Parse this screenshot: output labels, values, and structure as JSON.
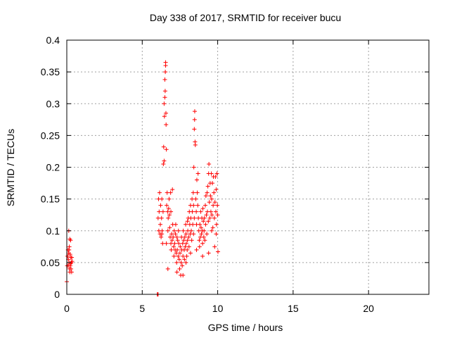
{
  "chart_data": {
    "type": "scatter",
    "title": "Day 338 of 2017, SRMTID for receiver bucu",
    "xlabel": "GPS time / hours",
    "ylabel": "SRMTID / TECUs",
    "xlim": [
      0,
      24
    ],
    "ylim": [
      0,
      0.4
    ],
    "xticks": [
      0,
      5,
      10,
      15,
      20
    ],
    "yticks": [
      0,
      0.05,
      0.1,
      0.15,
      0.2,
      0.25,
      0.3,
      0.35,
      0.4
    ],
    "ytick_labels": [
      "0",
      "0.05",
      "0.1",
      "0.15",
      "0.2",
      "0.25",
      "0.3",
      "0.35",
      "0.4"
    ],
    "grid": true,
    "marker": "+",
    "marker_color": "#ff0000",
    "series": [
      {
        "points": [
          [
            0.0,
            0.02
          ],
          [
            0.03,
            0.045
          ],
          [
            0.05,
            0.06
          ],
          [
            0.08,
            0.07
          ],
          [
            0.1,
            0.055
          ],
          [
            0.12,
            0.065
          ],
          [
            0.13,
            0.1
          ],
          [
            0.15,
            0.05
          ],
          [
            0.17,
            0.075
          ],
          [
            0.18,
            0.04
          ],
          [
            0.2,
            0.087
          ],
          [
            0.22,
            0.063
          ],
          [
            0.23,
            0.045
          ],
          [
            0.25,
            0.085
          ],
          [
            0.27,
            0.058
          ],
          [
            0.28,
            0.04
          ],
          [
            0.3,
            0.05
          ],
          [
            0.32,
            0.035
          ],
          [
            0.33,
            0.058
          ],
          [
            0.35,
            0.052
          ],
          [
            0.1,
            0.045
          ],
          [
            0.2,
            0.035
          ],
          [
            0.15,
            0.07
          ],
          [
            0.25,
            0.048
          ],
          [
            6.0,
            0.0
          ],
          [
            6.03,
            0.0
          ],
          [
            6.05,
            0.0
          ],
          [
            6.05,
            0.12
          ],
          [
            6.08,
            0.15
          ],
          [
            6.1,
            0.1
          ],
          [
            6.12,
            0.13
          ],
          [
            6.15,
            0.16
          ],
          [
            6.18,
            0.095
          ],
          [
            6.2,
            0.11
          ],
          [
            6.22,
            0.14
          ],
          [
            6.25,
            0.09
          ],
          [
            6.28,
            0.12
          ],
          [
            6.3,
            0.15
          ],
          [
            6.32,
            0.1
          ],
          [
            6.35,
            0.08
          ],
          [
            6.38,
            0.13
          ],
          [
            6.4,
            0.205
          ],
          [
            6.42,
            0.232
          ],
          [
            6.45,
            0.21
          ],
          [
            6.45,
            0.3
          ],
          [
            6.47,
            0.28
          ],
          [
            6.5,
            0.31
          ],
          [
            6.5,
            0.338
          ],
          [
            6.52,
            0.32
          ],
          [
            6.53,
            0.35
          ],
          [
            6.55,
            0.36
          ],
          [
            6.55,
            0.365
          ],
          [
            6.57,
            0.285
          ],
          [
            6.58,
            0.267
          ],
          [
            6.6,
            0.228
          ],
          [
            6.62,
            0.14
          ],
          [
            6.65,
            0.16
          ],
          [
            6.68,
            0.13
          ],
          [
            6.7,
            0.1
          ],
          [
            6.72,
            0.12
          ],
          [
            6.75,
            0.135
          ],
          [
            6.78,
            0.15
          ],
          [
            6.8,
            0.125
          ],
          [
            6.82,
            0.105
          ],
          [
            6.85,
            0.09
          ],
          [
            6.88,
            0.16
          ],
          [
            6.9,
            0.08
          ],
          [
            6.92,
            0.07
          ],
          [
            6.95,
            0.095
          ],
          [
            6.98,
            0.085
          ],
          [
            7.0,
            0.165
          ],
          [
            7.02,
            0.11
          ],
          [
            7.05,
            0.09
          ],
          [
            7.08,
            0.075
          ],
          [
            7.1,
            0.06
          ],
          [
            7.12,
            0.1
          ],
          [
            7.15,
            0.08
          ],
          [
            7.18,
            0.07
          ],
          [
            7.2,
            0.095
          ],
          [
            7.22,
            0.11
          ],
          [
            7.25,
            0.065
          ],
          [
            7.28,
            0.05
          ],
          [
            7.3,
            0.09
          ],
          [
            7.32,
            0.07
          ],
          [
            7.35,
            0.085
          ],
          [
            7.38,
            0.06
          ],
          [
            7.4,
            0.1
          ],
          [
            7.42,
            0.08
          ],
          [
            7.45,
            0.055
          ],
          [
            7.48,
            0.04
          ],
          [
            7.5,
            0.065
          ],
          [
            7.52,
            0.075
          ],
          [
            7.55,
            0.03
          ],
          [
            7.58,
            0.05
          ],
          [
            7.6,
            0.09
          ],
          [
            7.62,
            0.07
          ],
          [
            7.65,
            0.045
          ],
          [
            7.68,
            0.08
          ],
          [
            7.7,
            0.06
          ],
          [
            7.72,
            0.1
          ],
          [
            7.75,
            0.085
          ],
          [
            7.78,
            0.07
          ],
          [
            7.8,
            0.055
          ],
          [
            7.82,
            0.09
          ],
          [
            7.85,
            0.075
          ],
          [
            7.88,
            0.11
          ],
          [
            7.9,
            0.095
          ],
          [
            7.92,
            0.08
          ],
          [
            7.95,
            0.06
          ],
          [
            7.98,
            0.07
          ],
          [
            8.0,
            0.085
          ],
          [
            8.02,
            0.1
          ],
          [
            8.05,
            0.12
          ],
          [
            8.08,
            0.09
          ],
          [
            8.1,
            0.075
          ],
          [
            8.12,
            0.13
          ],
          [
            8.15,
            0.11
          ],
          [
            8.18,
            0.095
          ],
          [
            8.2,
            0.14
          ],
          [
            8.22,
            0.12
          ],
          [
            8.25,
            0.1
          ],
          [
            8.28,
            0.085
          ],
          [
            8.3,
            0.15
          ],
          [
            8.32,
            0.13
          ],
          [
            8.35,
            0.11
          ],
          [
            8.38,
            0.16
          ],
          [
            8.4,
            0.14
          ],
          [
            8.42,
            0.2
          ],
          [
            8.45,
            0.12
          ],
          [
            8.45,
            0.26
          ],
          [
            8.47,
            0.275
          ],
          [
            8.48,
            0.288
          ],
          [
            8.5,
            0.24
          ],
          [
            8.52,
            0.235
          ],
          [
            8.55,
            0.15
          ],
          [
            8.58,
            0.13
          ],
          [
            8.6,
            0.11
          ],
          [
            8.62,
            0.18
          ],
          [
            8.65,
            0.16
          ],
          [
            8.68,
            0.14
          ],
          [
            8.7,
            0.19
          ],
          [
            8.72,
            0.12
          ],
          [
            8.75,
            0.1
          ],
          [
            8.78,
            0.085
          ],
          [
            8.8,
            0.075
          ],
          [
            8.82,
            0.11
          ],
          [
            8.85,
            0.09
          ],
          [
            8.88,
            0.13
          ],
          [
            8.9,
            0.105
          ],
          [
            8.92,
            0.095
          ],
          [
            8.95,
            0.12
          ],
          [
            8.98,
            0.1
          ],
          [
            9.0,
            0.08
          ],
          [
            9.02,
            0.135
          ],
          [
            9.05,
            0.115
          ],
          [
            9.08,
            0.09
          ],
          [
            9.1,
            0.1
          ],
          [
            9.12,
            0.12
          ],
          [
            9.15,
            0.085
          ],
          [
            9.18,
            0.14
          ],
          [
            9.2,
            0.11
          ],
          [
            9.22,
            0.155
          ],
          [
            9.25,
            0.125
          ],
          [
            9.28,
            0.095
          ],
          [
            9.3,
            0.16
          ],
          [
            9.32,
            0.13
          ],
          [
            9.35,
            0.17
          ],
          [
            9.38,
            0.115
          ],
          [
            9.4,
            0.19
          ],
          [
            9.42,
            0.205
          ],
          [
            9.45,
            0.145
          ],
          [
            9.48,
            0.12
          ],
          [
            9.5,
            0.175
          ],
          [
            9.52,
            0.155
          ],
          [
            9.55,
            0.13
          ],
          [
            9.58,
            0.19
          ],
          [
            9.6,
            0.15
          ],
          [
            9.62,
            0.125
          ],
          [
            9.65,
            0.175
          ],
          [
            9.68,
            0.105
          ],
          [
            9.7,
            0.14
          ],
          [
            9.72,
            0.185
          ],
          [
            9.75,
            0.16
          ],
          [
            9.78,
            0.12
          ],
          [
            9.8,
            0.075
          ],
          [
            9.82,
            0.145
          ],
          [
            9.85,
            0.185
          ],
          [
            9.88,
            0.13
          ],
          [
            9.9,
            0.165
          ],
          [
            9.92,
            0.11
          ],
          [
            9.95,
            0.19
          ],
          [
            9.98,
            0.14
          ],
          [
            10.0,
            0.125
          ],
          [
            10.02,
            0.067
          ],
          [
            6.3,
            0.095
          ],
          [
            6.6,
            0.08
          ],
          [
            6.7,
            0.04
          ],
          [
            7.3,
            0.035
          ],
          [
            7.7,
            0.03
          ],
          [
            8.2,
            0.065
          ],
          [
            8.6,
            0.07
          ],
          [
            9.0,
            0.06
          ],
          [
            9.4,
            0.065
          ],
          [
            7.9,
            0.05
          ],
          [
            6.9,
            0.13
          ],
          [
            8.0,
            0.115
          ],
          [
            8.4,
            0.095
          ],
          [
            9.6,
            0.1
          ],
          [
            9.9,
            0.095
          ]
        ]
      }
    ]
  }
}
